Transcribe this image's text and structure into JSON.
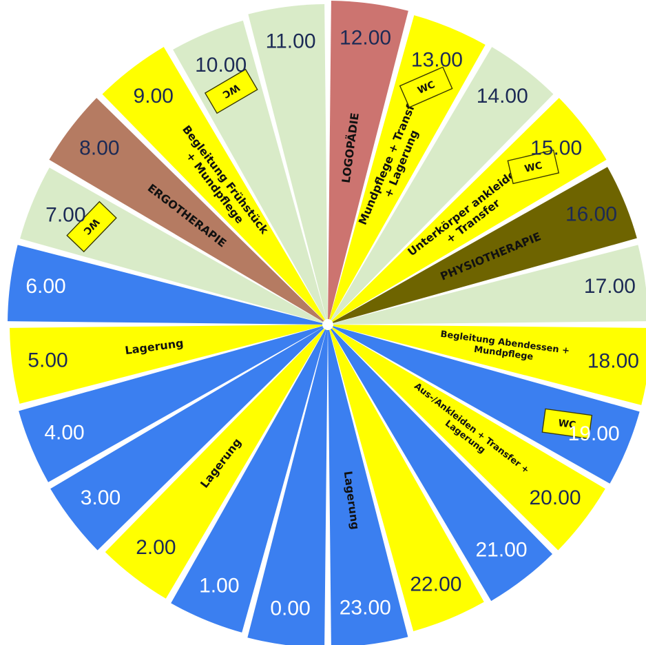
{
  "colors": {
    "night": "#3b7ff0",
    "free": "#d9ebc8",
    "activity": "#ffff00",
    "ergotherapie": "#b57b62",
    "logopaedie": "#cc7470",
    "physiotherapie": "#6e6400",
    "hour_text_dark": "#1c2a55",
    "hour_text_light": "#ffffff"
  },
  "wc_label": "WC",
  "segments": [
    {
      "hour": "0.00",
      "fill": "night",
      "activity": ""
    },
    {
      "hour": "1.00",
      "fill": "night",
      "activity": ""
    },
    {
      "hour": "2.00",
      "fill": "activity",
      "activity": "Lagerung"
    },
    {
      "hour": "3.00",
      "fill": "night",
      "activity": ""
    },
    {
      "hour": "4.00",
      "fill": "night",
      "activity": ""
    },
    {
      "hour": "5.00",
      "fill": "activity",
      "activity": "Lagerung"
    },
    {
      "hour": "6.00",
      "fill": "night",
      "activity": ""
    },
    {
      "hour": "7.00",
      "fill": "free",
      "activity": "",
      "wc": true
    },
    {
      "hour": "8.00",
      "fill": "ergotherapie",
      "activity": "ERGOTHERAPIE"
    },
    {
      "hour": "9.00",
      "fill": "activity",
      "activity": "Begleitung Frühstück",
      "activity2": "+ Mundpflege"
    },
    {
      "hour": "10.00",
      "fill": "free",
      "activity": "",
      "wc": true
    },
    {
      "hour": "11.00",
      "fill": "free",
      "activity": ""
    },
    {
      "hour": "12.00",
      "fill": "logopaedie",
      "activity": "LOGOPÄDIE"
    },
    {
      "hour": "13.00",
      "fill": "activity",
      "activity": "Mundpflege + Transfer",
      "activity2": "+ Lagerung",
      "wc": true
    },
    {
      "hour": "14.00",
      "fill": "free",
      "activity": ""
    },
    {
      "hour": "15.00",
      "fill": "activity",
      "activity": "Unterkörper ankleiden",
      "activity2": "+ Transfer",
      "wc": true
    },
    {
      "hour": "16.00",
      "fill": "physiotherapie",
      "activity": "PHYSIOTHERAPIE"
    },
    {
      "hour": "17.00",
      "fill": "free",
      "activity": ""
    },
    {
      "hour": "18.00",
      "fill": "activity",
      "activity": "Begleitung Abendessen +",
      "activity2": "Mundpflege"
    },
    {
      "hour": "19.00",
      "fill": "night",
      "activity": "",
      "wc": true
    },
    {
      "hour": "20.00",
      "fill": "activity",
      "activity": "Aus-/Ankleiden + Transfer +",
      "activity2": "Lagerung"
    },
    {
      "hour": "21.00",
      "fill": "night",
      "activity": ""
    },
    {
      "hour": "22.00",
      "fill": "activity",
      "activity": ""
    },
    {
      "hour": "23.00",
      "fill": "night",
      "activity": "Lagerung"
    }
  ]
}
